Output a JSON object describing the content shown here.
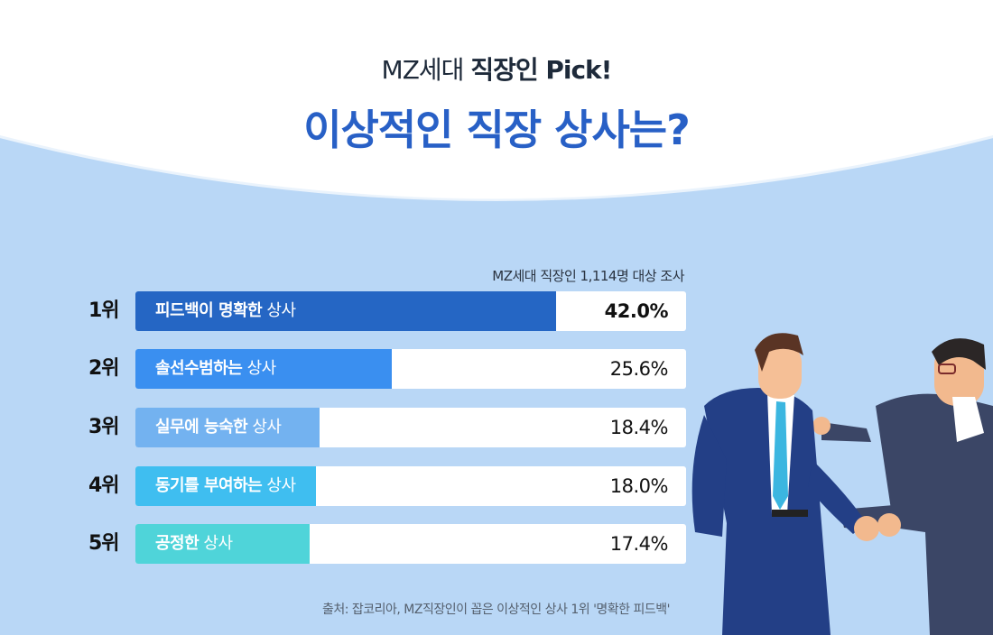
{
  "header": {
    "subtitle_prefix": "MZ세대",
    "subtitle_bold": "직장인 Pick!",
    "title": "이상적인 직장 상사는?"
  },
  "survey_note": "MZ세대 직장인 1,114명 대상 조사",
  "source": "출처: 잡코리아, MZ직장인이 꼽은 이상적인 상사 1위 '명확한 피드백'",
  "colors": {
    "background": "#b9d7f6",
    "title": "#2860c6",
    "bars": [
      "#2566c4",
      "#3a8ff0",
      "#73b2f0",
      "#3fbef0",
      "#4fd4d9"
    ]
  },
  "chart_data": {
    "type": "bar",
    "orientation": "horizontal",
    "xlim": [
      0,
      55
    ],
    "categories": [
      {
        "rank": "1위",
        "bold": "피드백이 명확한",
        "rest": " 상사"
      },
      {
        "rank": "2위",
        "bold": "솔선수범하는",
        "rest": " 상사"
      },
      {
        "rank": "3위",
        "bold": "실무에 능숙한",
        "rest": " 상사"
      },
      {
        "rank": "4위",
        "bold": "동기를 부여하는",
        "rest": " 상사"
      },
      {
        "rank": "5위",
        "bold": "공정한",
        "rest": " 상사"
      }
    ],
    "values": [
      42.0,
      25.6,
      18.4,
      18.0,
      17.4
    ],
    "value_labels": [
      "42.0%",
      "25.6%",
      "18.4%",
      "18.0%",
      "17.4%"
    ]
  }
}
